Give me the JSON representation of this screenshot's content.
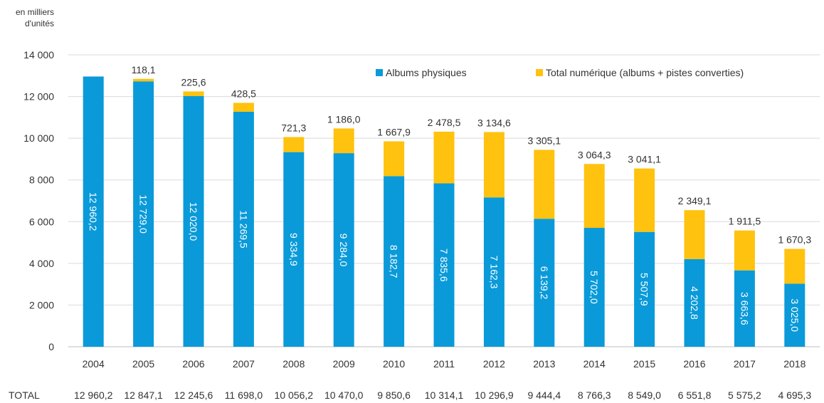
{
  "chart_data": {
    "type": "bar",
    "stacked": true,
    "unit_label_line1": "en milliers",
    "unit_label_line2": "d'unités",
    "total_label": "TOTAL",
    "categories": [
      "2004",
      "2005",
      "2006",
      "2007",
      "2008",
      "2009",
      "2010",
      "2011",
      "2012",
      "2013",
      "2014",
      "2015",
      "2016",
      "2017",
      "2018"
    ],
    "series": [
      {
        "name": "Albums physiques",
        "color": "#0A9AD9",
        "values": [
          12960.2,
          12729.0,
          12020.0,
          11269.5,
          9334.9,
          9284.0,
          8182.7,
          7835.6,
          7162.3,
          6139.2,
          5702.0,
          5507.9,
          4202.8,
          3663.6,
          3025.0
        ],
        "labels": [
          "12 960,2",
          "12 729,0",
          "12 020,0",
          "11 269,5",
          "9 334,9",
          "9 284,0",
          "8 182,7",
          "7 835,6",
          "7 162,3",
          "6 139,2",
          "5 702,0",
          "5 507,9",
          "4 202,8",
          "3 663,6",
          "3 025,0"
        ]
      },
      {
        "name": "Total numérique (albums + pistes converties)",
        "color": "#FFC20E",
        "values": [
          0,
          118.1,
          225.6,
          428.5,
          721.3,
          1186.0,
          1667.9,
          2478.5,
          3134.6,
          3305.1,
          3064.3,
          3041.1,
          2349.1,
          1911.5,
          1670.3
        ],
        "labels": [
          "",
          "118,1",
          "225,6",
          "428,5",
          "721,3",
          "1 186,0",
          "1 667,9",
          "2 478,5",
          "3 134,6",
          "3 305,1",
          "3 064,3",
          "3 041,1",
          "2 349,1",
          "1 911,5",
          "1 670,3"
        ]
      }
    ],
    "totals": [
      "12 960,2",
      "12 847,1",
      "12 245,6",
      "11 698,0",
      "10 056,2",
      "10 470,0",
      "9 850,6",
      "10 314,1",
      "10 296,9",
      "9 444,4",
      "8 766,3",
      "8 549,0",
      "6 551,8",
      "5 575,2",
      "4 695,3"
    ],
    "ylim": [
      0,
      14000
    ],
    "yticks": [
      0,
      2000,
      4000,
      6000,
      8000,
      10000,
      12000,
      14000
    ],
    "ytick_labels": [
      "0",
      "2 000",
      "4 000",
      "6 000",
      "8 000",
      "10 000",
      "12 000",
      "14 000"
    ],
    "grid": true,
    "legend_position": "top-right"
  }
}
